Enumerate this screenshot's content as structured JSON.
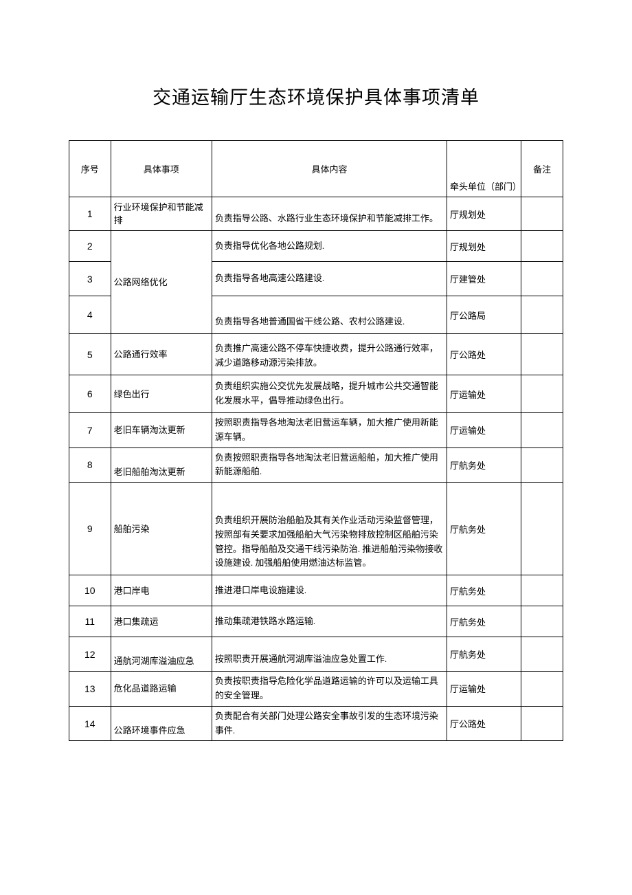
{
  "title": "交通运输厅生态环境保护具体事项清单",
  "columns": {
    "seq": "序号",
    "item": "具体事项",
    "content": "具体内容",
    "lead": "牵头单位（部门）",
    "note": "备注"
  },
  "rows": [
    {
      "seq": "1",
      "item": "行业环境保护和节能减排",
      "content": "负责指导公路、水路行业生态环境保护和节能减排工作。",
      "lead": "厅规划处",
      "note": ""
    },
    {
      "seq": "2",
      "item": "",
      "content": "负责指导优化各地公路规划.",
      "lead": "厅规划处",
      "note": ""
    },
    {
      "seq": "3",
      "item": "公路网络优化",
      "content": "负责指导各地高速公路建设.",
      "lead": "厅建管处",
      "note": ""
    },
    {
      "seq": "4",
      "item": "",
      "content": "负责指导各地普通国省干线公路、农村公路建设.",
      "lead": "厅公路局",
      "note": ""
    },
    {
      "seq": "5",
      "item": "公路通行效率",
      "content": "负责推广高速公路不停车快捷收费，提升公路通行效率，减少道路移动源污染排放。",
      "lead": "厅公路处",
      "note": ""
    },
    {
      "seq": "6",
      "item": "绿色出行",
      "content": "负责组织实施公交优先发展战略，提升城市公共交通智能化发展水平，倡导推动绿色出行。",
      "lead": "厅运输处",
      "note": ""
    },
    {
      "seq": "7",
      "item": "老旧车辆淘汰更新",
      "content": "按照职责指导各地淘汰老旧营运车辆，加大推广使用新能源车辆。",
      "lead": "厅运输处",
      "note": ""
    },
    {
      "seq": "8",
      "item": "老旧船舶淘汰更新",
      "content": "负责按照职责指导各地淘汰老旧营运船舶，加大推广使用新能源船舶.",
      "lead": "厅航务处",
      "note": ""
    },
    {
      "seq": "9",
      "item": "船舶污染",
      "content": "负责组织开展防治船舶及其有关作业活动污染监督管理，按照部有关要求加强船舶大气污染物排放控制区船舶污染管控。指导船舶及交通干线污染防治. 推进船舶污染物接收设施建设. 加强船舶使用燃油达标监管。",
      "lead": "厅航务处",
      "note": ""
    },
    {
      "seq": "10",
      "item": "港口岸电",
      "content": "推进港口岸电设施建设.",
      "lead": "厅航务处",
      "note": ""
    },
    {
      "seq": "11",
      "item": "港口集疏运",
      "content": "推动集疏港铁路水路运输.",
      "lead": "厅航务处",
      "note": ""
    },
    {
      "seq": "12",
      "item": "通航河湖库溢油应急",
      "content": "按照职责开展通航河湖库溢油应急处置工作.",
      "lead": "厅航务处",
      "note": ""
    },
    {
      "seq": "13",
      "item": "危化品道路运输",
      "content": "负责按职责指导危险化学品道路运输的许可以及运输工具的安全管理。",
      "lead": "厅运输处",
      "note": ""
    },
    {
      "seq": "14",
      "item": "公路环境事件应急",
      "content": "负责配合有关部门处理公路安全事故引发的生态环境污染事件.",
      "lead": "厅公路处",
      "note": ""
    }
  ]
}
